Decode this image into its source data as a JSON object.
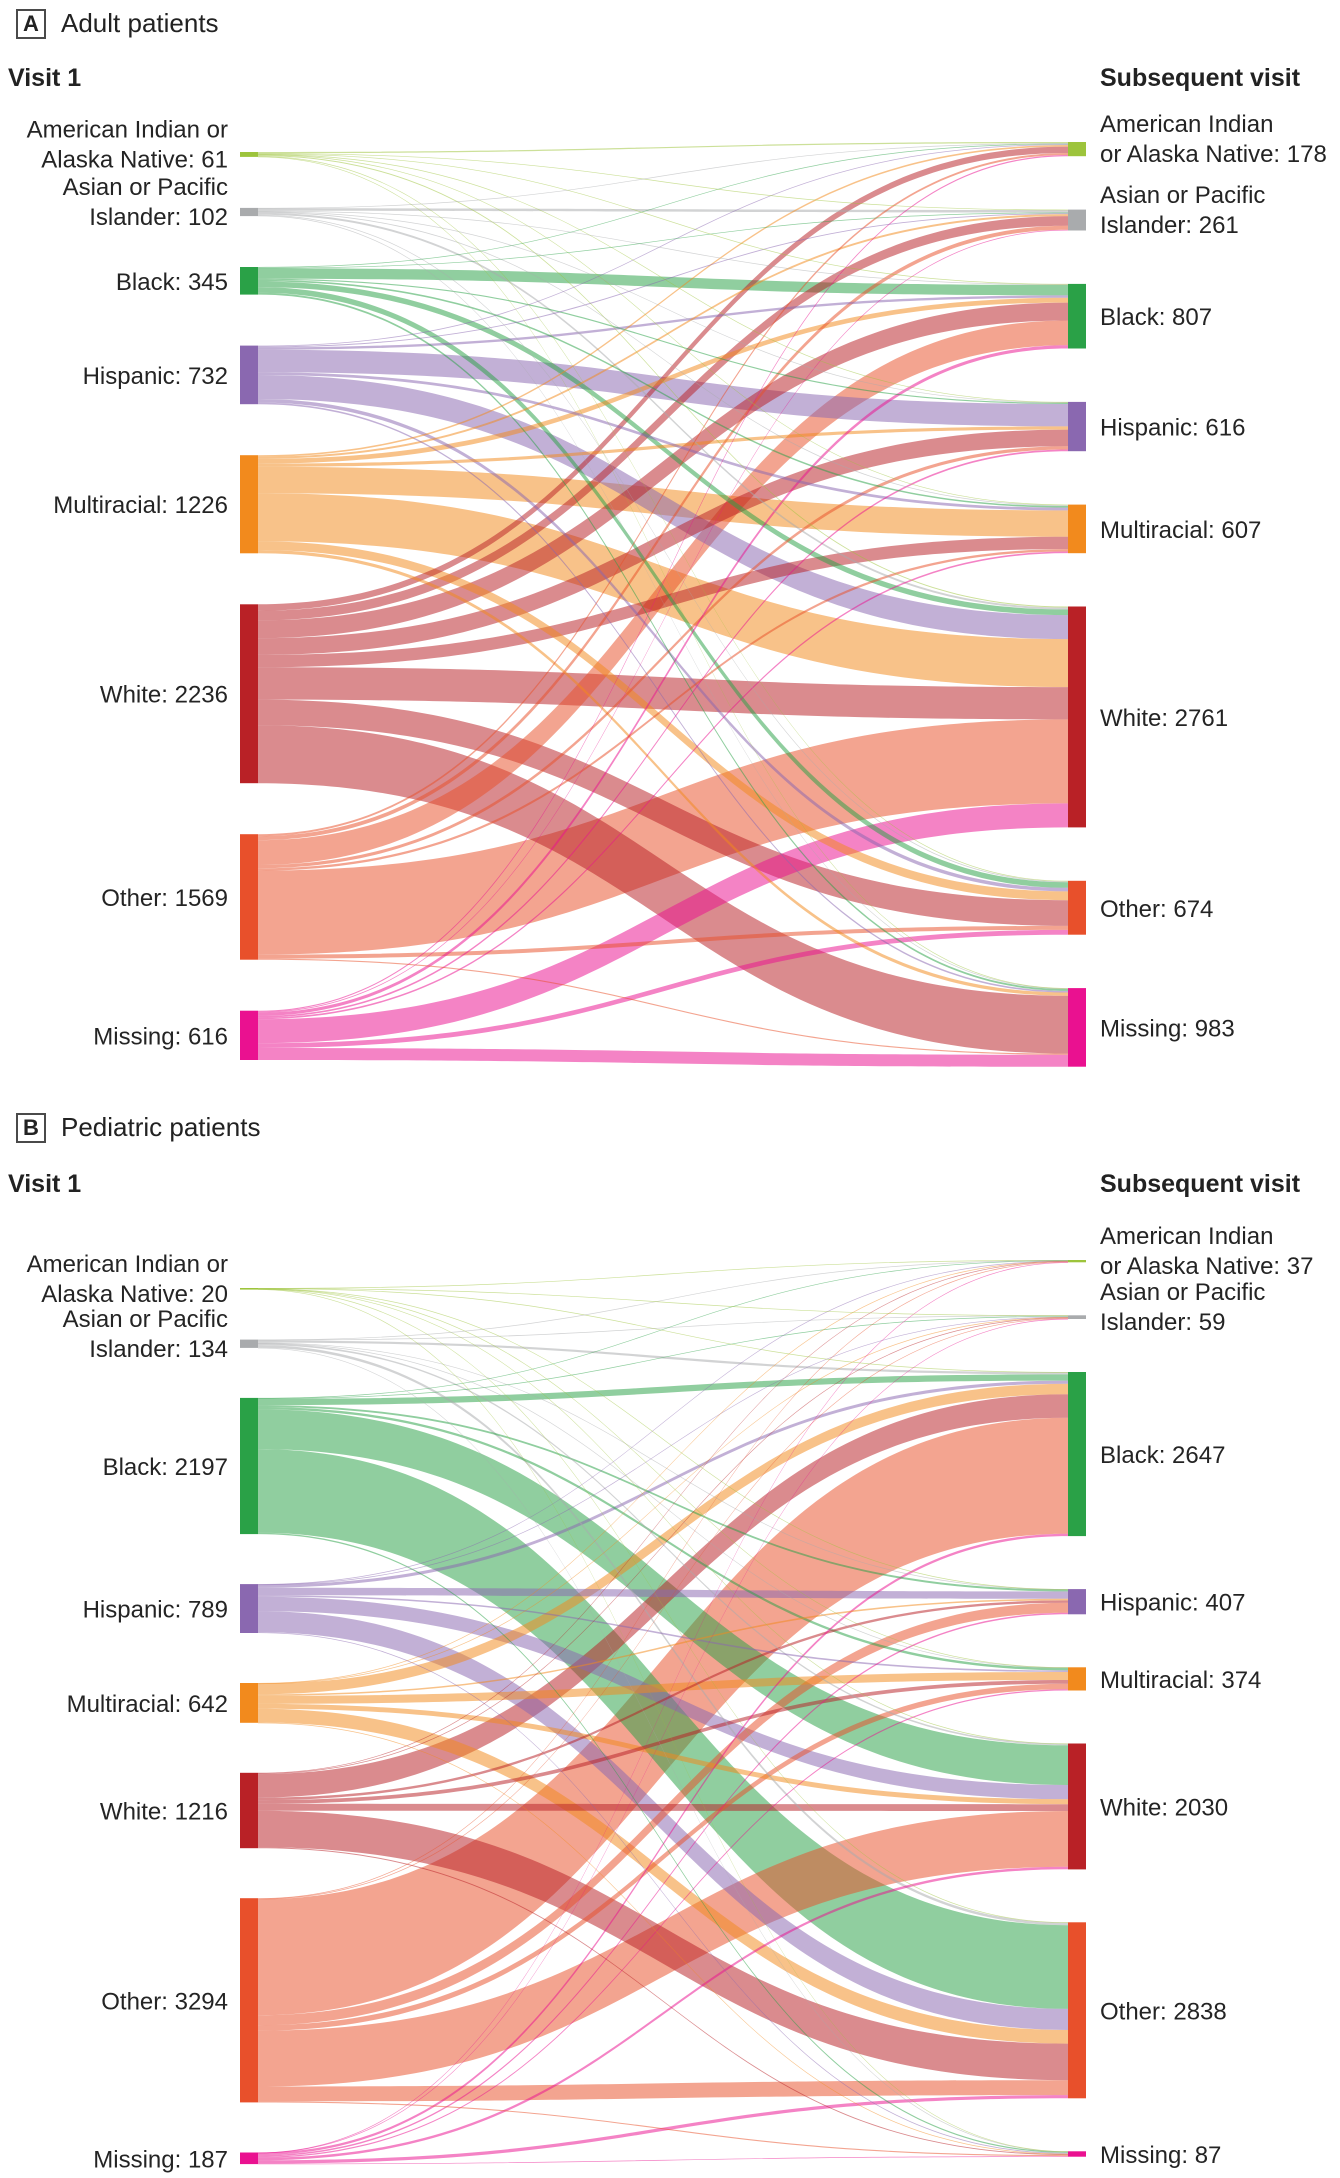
{
  "node_colors": [
    "#9dc43c",
    "#a9abad",
    "#2aa147",
    "#8a68b0",
    "#f28a1d",
    "#b92126",
    "#e8502b",
    "#ea1190"
  ],
  "categories": [
    "American Indian or Alaska Native",
    "Asian or Pacific Islander",
    "Black",
    "Hispanic",
    "Multiracial",
    "White",
    "Other",
    "Missing"
  ],
  "chart_data": [
    {
      "type": "sankey",
      "panel_label": "A",
      "title": "Adult patients",
      "left_axis_label": "Visit 1",
      "right_axis_label": "Subsequent visit",
      "visit1_values": [
        61,
        102,
        345,
        732,
        1226,
        2236,
        1569,
        616
      ],
      "subsequent_values": [
        178,
        261,
        807,
        616,
        607,
        2761,
        674,
        983
      ],
      "visit1_labels": [
        [
          "American Indian or",
          "Alaska Native: 61"
        ],
        [
          "Asian or Pacific",
          "Islander: 102"
        ],
        [
          "Black: 345"
        ],
        [
          "Hispanic: 732"
        ],
        [
          "Multiracial: 1226"
        ],
        [
          "White: 2236"
        ],
        [
          "Other: 1569"
        ],
        [
          "Missing: 616"
        ]
      ],
      "subsequent_labels": [
        [
          "American Indian",
          "or Alaska Native: 178"
        ],
        [
          "Asian or Pacific",
          "Islander: 261"
        ],
        [
          "Black: 807"
        ],
        [
          "Hispanic: 616"
        ],
        [
          "Multiracial: 607"
        ],
        [
          "White: 2761"
        ],
        [
          "Other: 674"
        ],
        [
          "Missing: 983"
        ]
      ],
      "flow_values_are_estimates": true,
      "flows_estimated": [
        [
          15,
          5,
          5,
          5,
          8,
          12,
          7,
          4
        ],
        [
          5,
          31,
          8,
          6,
          10,
          25,
          10,
          7
        ],
        [
          8,
          8,
          130,
          15,
          20,
          70,
          70,
          24
        ],
        [
          10,
          12,
          30,
          280,
          35,
          300,
          45,
          20
        ],
        [
          20,
          25,
          60,
          40,
          330,
          600,
          110,
          41
        ],
        [
          80,
          120,
          224,
          209,
          154,
          404,
          322,
          723
        ],
        [
          25,
          50,
          310,
          40,
          30,
          1050,
          50,
          14
        ],
        [
          15,
          10,
          40,
          21,
          20,
          300,
          60,
          150
        ]
      ]
    },
    {
      "type": "sankey",
      "panel_label": "B",
      "title": "Pediatric patients",
      "left_axis_label": "Visit 1",
      "right_axis_label": "Subsequent visit",
      "visit1_values": [
        20,
        134,
        2197,
        789,
        642,
        1216,
        3294,
        187
      ],
      "subsequent_values": [
        37,
        59,
        2647,
        407,
        374,
        2030,
        2838,
        87
      ],
      "visit1_labels": [
        [
          "American Indian or",
          "Alaska Native: 20"
        ],
        [
          "Asian or Pacific",
          "Islander: 134"
        ],
        [
          "Black: 2197"
        ],
        [
          "Hispanic: 789"
        ],
        [
          "Multiracial: 642"
        ],
        [
          "White: 1216"
        ],
        [
          "Other: 3294"
        ],
        [
          "Missing: 187"
        ]
      ],
      "subsequent_labels": [
        [
          "American Indian",
          "or Alaska Native: 37"
        ],
        [
          "Asian or Pacific",
          "Islander: 59"
        ],
        [
          "Black: 2647"
        ],
        [
          "Hispanic: 407"
        ],
        [
          "Multiracial: 374"
        ],
        [
          "White: 2030"
        ],
        [
          "Other: 2838"
        ],
        [
          "Missing: 87"
        ]
      ],
      "flow_values_are_estimates": true,
      "flows_estimated": [
        [
          3,
          1,
          4,
          1,
          2,
          4,
          4,
          1
        ],
        [
          2,
          12,
          35,
          6,
          8,
          25,
          42,
          4
        ],
        [
          6,
          10,
          100,
          30,
          40,
          640,
          1350,
          21
        ],
        [
          4,
          6,
          50,
          120,
          25,
          230,
          340,
          14
        ],
        [
          5,
          6,
          170,
          25,
          130,
          80,
          220,
          6
        ],
        [
          8,
          12,
          380,
          40,
          60,
          110,
          590,
          16
        ],
        [
          7,
          10,
          1870,
          160,
          90,
          900,
          240,
          17
        ],
        [
          2,
          2,
          38,
          25,
          19,
          41,
          52,
          8
        ]
      ]
    }
  ]
}
